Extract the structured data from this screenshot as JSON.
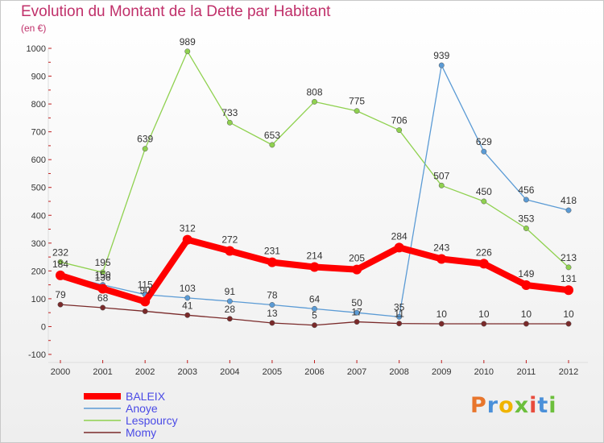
{
  "chart_data": {
    "type": "line",
    "title": "Evolution du Montant de la Dette par Habitant",
    "subtitle": "(en €)",
    "x": [
      "2000",
      "2001",
      "2002",
      "2003",
      "2004",
      "2005",
      "2006",
      "2007",
      "2008",
      "2009",
      "2010",
      "2011",
      "2012"
    ],
    "ylim": [
      -100,
      1000
    ],
    "yticks": [
      -100,
      0,
      100,
      200,
      300,
      400,
      500,
      600,
      700,
      800,
      900,
      1000
    ],
    "grid": false,
    "legend_position": "bottom-left",
    "series": [
      {
        "name": "BALEIX",
        "color": "#ff0000",
        "values": [
          184,
          136,
          90,
          312,
          272,
          231,
          214,
          205,
          284,
          243,
          226,
          149,
          131
        ]
      },
      {
        "name": "Anoye",
        "color": "#5b9bd5",
        "values": [
          187,
          150,
          115,
          103,
          91,
          78,
          64,
          50,
          35,
          939,
          629,
          456,
          418
        ]
      },
      {
        "name": "Lespourcy",
        "color": "#8fd14f",
        "values": [
          232,
          195,
          639,
          989,
          733,
          653,
          808,
          775,
          706,
          507,
          450,
          353,
          213
        ]
      },
      {
        "name": "Momy",
        "color": "#7a2a2a",
        "values": [
          79,
          68,
          55,
          41,
          28,
          13,
          5,
          17,
          11,
          10,
          10,
          10,
          10
        ]
      }
    ],
    "labels": {
      "BALEIX": [
        "184",
        "136",
        "90",
        "312",
        "272",
        "231",
        "214",
        "205",
        "284",
        "243",
        "226",
        "149",
        "131"
      ],
      "Anoye": [
        "",
        "150",
        "115",
        "103",
        "91",
        "78",
        "64",
        "50",
        "35",
        "939",
        "629",
        "456",
        "418"
      ],
      "Lespourcy": [
        "232",
        "195",
        "639",
        "989",
        "733",
        "653",
        "808",
        "775",
        "706",
        "507",
        "450",
        "353",
        "213"
      ],
      "Momy": [
        "79",
        "68",
        "",
        "41",
        "28",
        "13",
        "5",
        "17",
        "11",
        "10",
        "10",
        "10",
        "10"
      ]
    }
  },
  "logo": {
    "text": "Proxiti",
    "colors": [
      "#e8762c",
      "#4a90d9",
      "#f0b400",
      "#6cbf3c",
      "#e84c3d",
      "#4a90d9",
      "#6cbf3c"
    ]
  }
}
